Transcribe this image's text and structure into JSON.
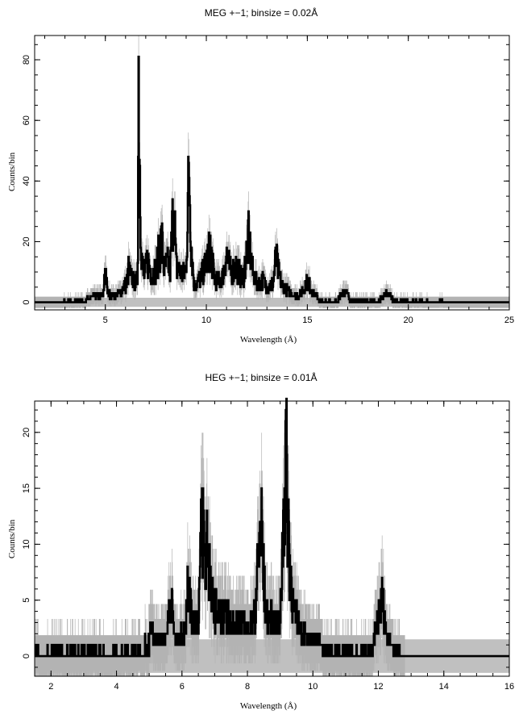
{
  "chart_data": [
    {
      "type": "line",
      "title": "MEG +−1; binsize = 0.02Å",
      "xlabel": "Wavelength (Å)",
      "ylabel": "Counts/bin",
      "xlim": [
        1.5,
        25
      ],
      "ylim": [
        -2.5,
        88
      ],
      "xticks": [
        5,
        10,
        15,
        20,
        25
      ],
      "yticks": [
        0,
        20,
        40,
        60,
        80
      ],
      "xminor": 1,
      "yminor": 5,
      "background_band": [
        -1.5,
        1.5
      ],
      "noise_region": [
        1.5,
        25
      ],
      "colors": {
        "data": "#000000",
        "errors": "#b3b3b3",
        "band": "#c0c0c0"
      },
      "profile": [
        [
          1.5,
          0
        ],
        [
          3.5,
          0.5
        ],
        [
          4.0,
          1
        ],
        [
          4.5,
          2
        ],
        [
          4.9,
          2
        ],
        [
          5.0,
          13
        ],
        [
          5.1,
          3
        ],
        [
          5.5,
          2
        ],
        [
          5.8,
          4
        ],
        [
          6.05,
          6
        ],
        [
          6.15,
          11
        ],
        [
          6.3,
          8
        ],
        [
          6.5,
          6
        ],
        [
          6.6,
          8
        ],
        [
          6.65,
          77
        ],
        [
          6.72,
          40
        ],
        [
          6.8,
          15
        ],
        [
          6.9,
          8
        ],
        [
          7.1,
          14
        ],
        [
          7.3,
          9
        ],
        [
          7.5,
          11
        ],
        [
          7.8,
          21
        ],
        [
          7.9,
          11
        ],
        [
          8.1,
          13
        ],
        [
          8.2,
          9
        ],
        [
          8.4,
          35
        ],
        [
          8.5,
          12
        ],
        [
          8.7,
          10
        ],
        [
          8.9,
          9
        ],
        [
          9.0,
          12
        ],
        [
          9.15,
          45
        ],
        [
          9.25,
          20
        ],
        [
          9.4,
          5
        ],
        [
          9.6,
          7
        ],
        [
          9.8,
          9
        ],
        [
          10.0,
          13
        ],
        [
          10.2,
          18
        ],
        [
          10.4,
          8
        ],
        [
          10.6,
          7
        ],
        [
          10.8,
          8
        ],
        [
          11.0,
          16
        ],
        [
          11.2,
          10
        ],
        [
          11.5,
          12
        ],
        [
          11.8,
          7
        ],
        [
          12.1,
          21
        ],
        [
          12.3,
          10
        ],
        [
          12.5,
          6
        ],
        [
          12.8,
          7
        ],
        [
          13.1,
          5
        ],
        [
          13.3,
          6
        ],
        [
          13.45,
          15
        ],
        [
          13.6,
          9
        ],
        [
          13.8,
          5
        ],
        [
          14.2,
          3
        ],
        [
          14.6,
          2
        ],
        [
          15.0,
          7
        ],
        [
          15.3,
          3
        ],
        [
          15.6,
          1
        ],
        [
          16.5,
          1
        ],
        [
          16.95,
          4
        ],
        [
          17.1,
          1
        ],
        [
          18.5,
          0.6
        ],
        [
          19.0,
          3
        ],
        [
          19.3,
          0.6
        ],
        [
          25,
          0
        ]
      ]
    },
    {
      "type": "line",
      "title": "HEG +−1; binsize = 0.01Å",
      "xlabel": "Wavelength (Å)",
      "ylabel": "Counts/bin",
      "xlim": [
        1.5,
        16
      ],
      "ylim": [
        -1.8,
        22.8
      ],
      "xticks": [
        2,
        4,
        6,
        8,
        10,
        12,
        14,
        16
      ],
      "yticks": [
        0,
        5,
        10,
        15,
        20
      ],
      "xminor": 0.5,
      "yminor": 1,
      "background_band": [
        -1.5,
        1.5
      ],
      "noise_region": [
        1.5,
        12.8
      ],
      "colors": {
        "data": "#000000",
        "errors": "#b3b3b3",
        "band": "#c0c0c0"
      },
      "profile": [
        [
          1.5,
          0.4
        ],
        [
          4.0,
          0.6
        ],
        [
          4.5,
          1
        ],
        [
          5.0,
          1.2
        ],
        [
          5.05,
          3
        ],
        [
          5.15,
          1.5
        ],
        [
          5.5,
          1.5
        ],
        [
          5.65,
          5
        ],
        [
          5.8,
          1.5
        ],
        [
          6.1,
          2
        ],
        [
          6.2,
          8
        ],
        [
          6.3,
          3
        ],
        [
          6.5,
          3
        ],
        [
          6.62,
          13
        ],
        [
          6.72,
          8
        ],
        [
          6.78,
          11
        ],
        [
          6.9,
          5
        ],
        [
          7.1,
          4
        ],
        [
          7.5,
          3
        ],
        [
          7.8,
          3
        ],
        [
          8.0,
          2.5
        ],
        [
          8.2,
          3
        ],
        [
          8.42,
          12
        ],
        [
          8.55,
          4
        ],
        [
          8.8,
          3
        ],
        [
          9.0,
          3
        ],
        [
          9.17,
          18
        ],
        [
          9.27,
          10
        ],
        [
          9.4,
          4
        ],
        [
          9.7,
          2
        ],
        [
          10.0,
          1.5
        ],
        [
          10.5,
          1
        ],
        [
          11.0,
          0.8
        ],
        [
          11.8,
          0.8
        ],
        [
          12.13,
          5
        ],
        [
          12.25,
          1.5
        ],
        [
          12.6,
          1
        ],
        [
          12.75,
          0
        ]
      ]
    }
  ]
}
